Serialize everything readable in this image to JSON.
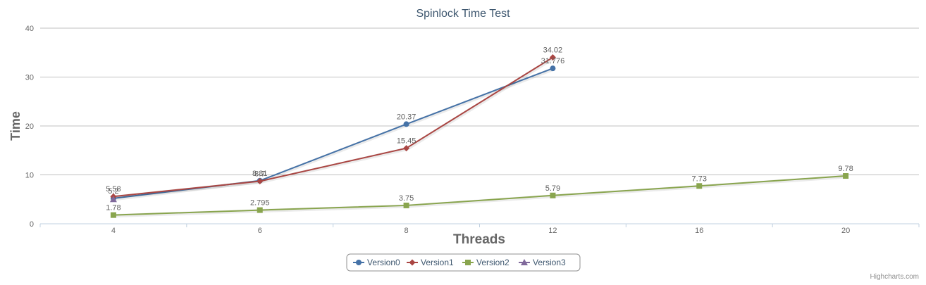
{
  "chart_data": {
    "type": "line",
    "title": "Spinlock Time Test",
    "xlabel": "Threads",
    "ylabel": "Time",
    "categories": [
      "4",
      "6",
      "8",
      "12",
      "16",
      "20"
    ],
    "ylim": [
      0,
      40
    ],
    "yticks": [
      0,
      10,
      20,
      30,
      40
    ],
    "grid": true,
    "legend_position": "bottom-center",
    "credits": "Highcharts.com",
    "series": [
      {
        "name": "Version0",
        "color": "#4572a7",
        "marker": "circle",
        "values": [
          5.2,
          8.81,
          20.37,
          31.776,
          null,
          null
        ],
        "labels": [
          "5.2",
          "8.81",
          "20.37",
          "31.776",
          null,
          null
        ]
      },
      {
        "name": "Version1",
        "color": "#aa4643",
        "marker": "diamond",
        "values": [
          5.58,
          8.7,
          15.45,
          34.02,
          null,
          null
        ],
        "labels": [
          "5.58",
          "8.7",
          "15.45",
          "34.02",
          null,
          null
        ]
      },
      {
        "name": "Version2",
        "color": "#89a54e",
        "marker": "square",
        "values": [
          1.78,
          2.795,
          3.75,
          5.79,
          7.73,
          9.78
        ],
        "labels": [
          "1.78",
          "2.795",
          "3.75",
          "5.79",
          "7.73",
          "9.78"
        ]
      },
      {
        "name": "Version3",
        "color": "#80699b",
        "marker": "triangle",
        "values": [
          5.0,
          null,
          null,
          null,
          null,
          null
        ],
        "labels": [
          null,
          null,
          null,
          null,
          null,
          null
        ]
      }
    ]
  }
}
